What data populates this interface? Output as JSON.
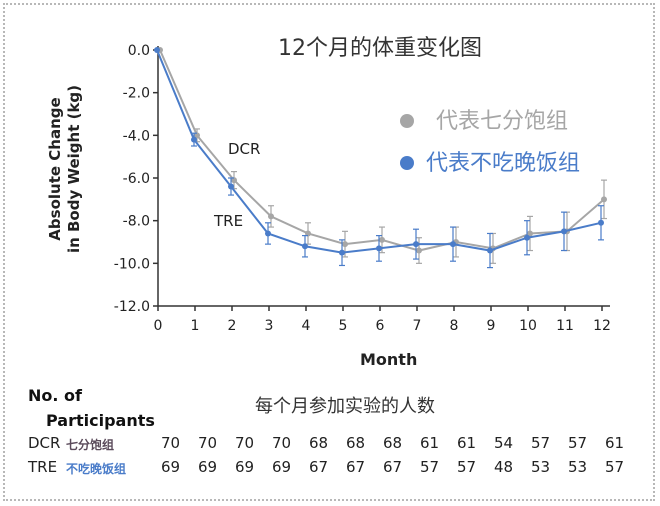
{
  "chart_data": {
    "type": "line",
    "title": "12个月的体重变化图",
    "xlabel": "Month",
    "ylabel": "Absolute Change in Body Weight (kg)",
    "ylabel_lines": [
      "Absolute Change",
      "in Body Weight (kg)"
    ],
    "x": [
      0,
      1,
      2,
      3,
      4,
      5,
      6,
      7,
      8,
      9,
      10,
      11,
      12
    ],
    "xlim": [
      0,
      12
    ],
    "ylim": [
      -12,
      0
    ],
    "yticks": [
      0,
      -2,
      -4,
      -6,
      -8,
      -10,
      -12
    ],
    "ytick_labels": [
      "0.0",
      "-2.0",
      "-4.0",
      "-6.0",
      "-8.0",
      "-10.0",
      "-12.0"
    ],
    "xtick_labels": [
      "0",
      "1",
      "2",
      "3",
      "4",
      "5",
      "6",
      "7",
      "8",
      "9",
      "10",
      "11",
      "12"
    ],
    "grid": false,
    "legend_position": "top-right",
    "series": [
      {
        "name": "代表七分饱组",
        "label": "DCR",
        "color": "#a6a6a6",
        "values": [
          0,
          -4.0,
          -6.1,
          -7.8,
          -8.6,
          -9.1,
          -8.9,
          -9.4,
          -9.0,
          -9.3,
          -8.6,
          -8.5,
          -7.0
        ],
        "err": [
          0,
          0.3,
          0.4,
          0.5,
          0.5,
          0.6,
          0.6,
          0.6,
          0.7,
          0.7,
          0.8,
          0.9,
          0.9
        ]
      },
      {
        "name": "代表不吃晚饭组",
        "label": "TRE",
        "color": "#4a7cc9",
        "values": [
          0,
          -4.2,
          -6.4,
          -8.6,
          -9.2,
          -9.5,
          -9.3,
          -9.1,
          -9.1,
          -9.4,
          -8.8,
          -8.5,
          -8.1
        ],
        "err": [
          0,
          0.3,
          0.4,
          0.5,
          0.5,
          0.6,
          0.6,
          0.7,
          0.8,
          0.8,
          0.8,
          0.9,
          0.8
        ]
      }
    ]
  },
  "participants": {
    "heading": "No. of",
    "heading2": "Participants",
    "subtitle": "每个月参加实验的人数",
    "rows": [
      {
        "group": "DCR",
        "cn": "七分饱组",
        "color": "#5a4a5a",
        "counts": [
          "70",
          "70",
          "70",
          "70",
          "68",
          "68",
          "68",
          "61",
          "61",
          "54",
          "57",
          "57",
          "61"
        ]
      },
      {
        "group": "TRE",
        "cn": "不吃晚饭组",
        "color": "#4a7cc9",
        "counts": [
          "69",
          "69",
          "69",
          "69",
          "67",
          "67",
          "67",
          "57",
          "57",
          "48",
          "53",
          "53",
          "57"
        ]
      }
    ]
  }
}
